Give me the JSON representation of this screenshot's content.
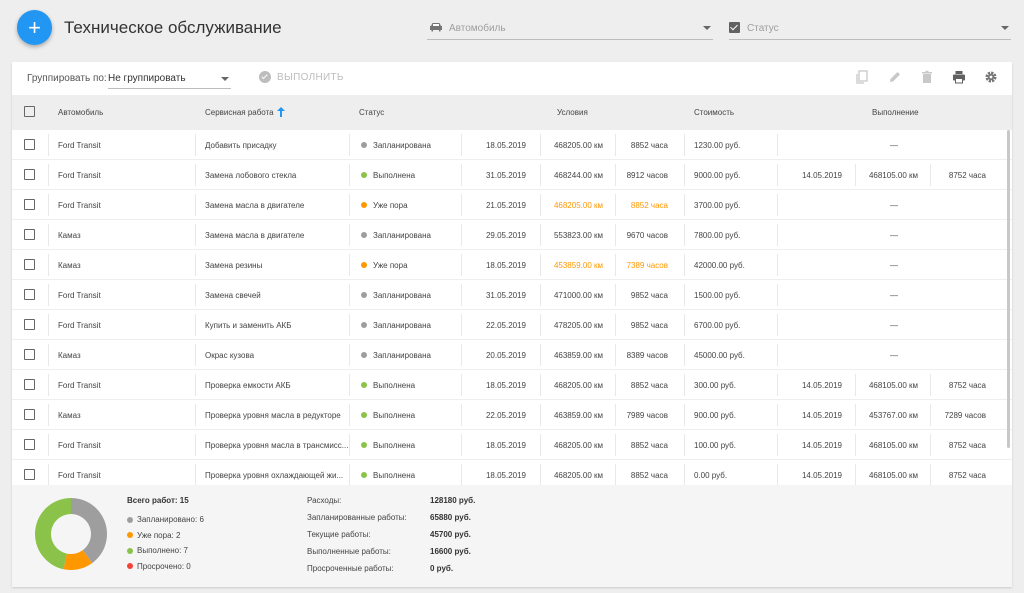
{
  "header": {
    "title": "Техническое обслуживание",
    "vehicle_placeholder": "Автомобиль",
    "status_placeholder": "Статус"
  },
  "toolbar": {
    "group_label": "Группировать по:",
    "group_value": "Не группировать",
    "execute_label": "ВЫПОЛНИТЬ"
  },
  "table": {
    "headers": {
      "vehicle": "Автомобиль",
      "service": "Сервисная работа",
      "status": "Статус",
      "conditions": "Условия",
      "cost": "Стоимость",
      "execution": "Выполнение"
    },
    "rows": [
      {
        "vehicle": "Ford Transit",
        "service": "Добавить присадку",
        "status": "Запланирована",
        "status_color": "#9e9e9e",
        "date": "18.05.2019",
        "km": "468205.00 км",
        "hours": "8852 часа",
        "warn": false,
        "cost": "1230.00 руб.",
        "done": false,
        "done_date": "",
        "done_km": "",
        "done_hours": "",
        "dash": "—"
      },
      {
        "vehicle": "Ford Transit",
        "service": "Замена лобового стекла",
        "status": "Выполнена",
        "status_color": "#8bc34a",
        "date": "31.05.2019",
        "km": "468244.00 км",
        "hours": "8912 часов",
        "warn": false,
        "cost": "9000.00 руб.",
        "done": true,
        "done_date": "14.05.2019",
        "done_km": "468105.00 км",
        "done_hours": "8752 часа",
        "dash": ""
      },
      {
        "vehicle": "Ford Transit",
        "service": "Замена масла в двигателе",
        "status": "Уже пора",
        "status_color": "#ff9800",
        "date": "21.05.2019",
        "km": "468205.00 км",
        "hours": "8852 часа",
        "warn": true,
        "cost": "3700.00 руб.",
        "done": false,
        "done_date": "",
        "done_km": "",
        "done_hours": "",
        "dash": "—"
      },
      {
        "vehicle": "Камаз",
        "service": "Замена масла в двигателе",
        "status": "Запланирована",
        "status_color": "#9e9e9e",
        "date": "29.05.2019",
        "km": "553823.00 км",
        "hours": "9670 часов",
        "warn": false,
        "cost": "7800.00 руб.",
        "done": false,
        "done_date": "",
        "done_km": "",
        "done_hours": "",
        "dash": "—"
      },
      {
        "vehicle": "Камаз",
        "service": "Замена резины",
        "status": "Уже пора",
        "status_color": "#ff9800",
        "date": "18.05.2019",
        "km": "453859.00 км",
        "hours": "7389 часов",
        "warn": true,
        "cost": "42000.00 руб.",
        "done": false,
        "done_date": "",
        "done_km": "",
        "done_hours": "",
        "dash": "—"
      },
      {
        "vehicle": "Ford Transit",
        "service": "Замена свечей",
        "status": "Запланирована",
        "status_color": "#9e9e9e",
        "date": "31.05.2019",
        "km": "471000.00 км",
        "hours": "9852 часа",
        "warn": false,
        "cost": "1500.00 руб.",
        "done": false,
        "done_date": "",
        "done_km": "",
        "done_hours": "",
        "dash": "—"
      },
      {
        "vehicle": "Ford Transit",
        "service": "Купить и заменить АКБ",
        "status": "Запланирована",
        "status_color": "#9e9e9e",
        "date": "22.05.2019",
        "km": "478205.00 км",
        "hours": "9852 часа",
        "warn": false,
        "cost": "6700.00 руб.",
        "done": false,
        "done_date": "",
        "done_km": "",
        "done_hours": "",
        "dash": "—"
      },
      {
        "vehicle": "Камаз",
        "service": "Окрас кузова",
        "status": "Запланирована",
        "status_color": "#9e9e9e",
        "date": "20.05.2019",
        "km": "463859.00 км",
        "hours": "8389 часов",
        "warn": false,
        "cost": "45000.00 руб.",
        "done": false,
        "done_date": "",
        "done_km": "",
        "done_hours": "",
        "dash": "—"
      },
      {
        "vehicle": "Ford Transit",
        "service": "Проверка емкости АКБ",
        "status": "Выполнена",
        "status_color": "#8bc34a",
        "date": "18.05.2019",
        "km": "468205.00 км",
        "hours": "8852 часа",
        "warn": false,
        "cost": "300.00 руб.",
        "done": true,
        "done_date": "14.05.2019",
        "done_km": "468105.00 км",
        "done_hours": "8752 часа",
        "dash": ""
      },
      {
        "vehicle": "Камаз",
        "service": "Проверка уровня масла в редукторе",
        "status": "Выполнена",
        "status_color": "#8bc34a",
        "date": "22.05.2019",
        "km": "463859.00 км",
        "hours": "7989 часов",
        "warn": false,
        "cost": "900.00 руб.",
        "done": true,
        "done_date": "14.05.2019",
        "done_km": "453767.00 км",
        "done_hours": "7289 часов",
        "dash": ""
      },
      {
        "vehicle": "Ford Transit",
        "service": "Проверка уровня масла в трансмисс...",
        "status": "Выполнена",
        "status_color": "#8bc34a",
        "date": "18.05.2019",
        "km": "468205.00 км",
        "hours": "8852 часа",
        "warn": false,
        "cost": "100.00 руб.",
        "done": true,
        "done_date": "14.05.2019",
        "done_km": "468105.00 км",
        "done_hours": "8752 часа",
        "dash": ""
      },
      {
        "vehicle": "Ford Transit",
        "service": "Проверка уровня охлаждающей жи...",
        "status": "Выполнена",
        "status_color": "#8bc34a",
        "date": "18.05.2019",
        "km": "468205.00 км",
        "hours": "8852 часа",
        "warn": false,
        "cost": "0.00 руб.",
        "done": true,
        "done_date": "14.05.2019",
        "done_km": "468105.00 км",
        "done_hours": "8752 часа",
        "dash": ""
      }
    ]
  },
  "summary": {
    "total_label": "Всего работ: 15",
    "legend": [
      {
        "label": "Запланировано: 6",
        "color": "#9e9e9e",
        "count": 6
      },
      {
        "label": "Уже пора: 2",
        "color": "#ff9800",
        "count": 2
      },
      {
        "label": "Выполнено: 7",
        "color": "#8bc34a",
        "count": 7
      },
      {
        "label": "Просрочено: 0",
        "color": "#f44336",
        "count": 0
      }
    ],
    "expenses": [
      {
        "label": "Расходы:",
        "value": "128180 руб."
      },
      {
        "label": "Запланированные работы:",
        "value": "65880 руб."
      },
      {
        "label": "Текущие работы:",
        "value": "45700 руб."
      },
      {
        "label": "Выполненные работы:",
        "value": "16600 руб."
      },
      {
        "label": "Просроченные работы:",
        "value": "0 руб."
      }
    ]
  }
}
